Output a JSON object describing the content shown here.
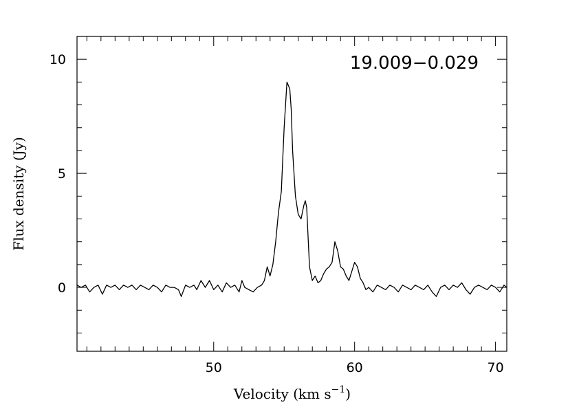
{
  "chart_data": {
    "type": "line",
    "title": "",
    "annotation": "19.009−0.029",
    "xlabel": "Velocity (km s",
    "xlabel_sup": "−1",
    "xlabel_close": ")",
    "ylabel": "Flux density (Jy)",
    "xlim": [
      40.3,
      70.8
    ],
    "ylim": [
      -2.8,
      11.0
    ],
    "x_major_ticks": [
      50,
      60,
      70
    ],
    "x_tick_labels": [
      "50",
      "60",
      "70"
    ],
    "x_minor_step": 1,
    "y_major_ticks": [
      0,
      5,
      10
    ],
    "y_tick_labels": [
      "0",
      "5",
      "10"
    ],
    "y_minor_step": 1,
    "grid": false,
    "series": [
      {
        "x": [
          40.3,
          40.6,
          40.9,
          41.2,
          41.5,
          41.8,
          42.1,
          42.4,
          42.7,
          43.0,
          43.3,
          43.6,
          43.9,
          44.2,
          44.5,
          44.8,
          45.1,
          45.4,
          45.7,
          46.0,
          46.3,
          46.6,
          46.9,
          47.2,
          47.5,
          47.7,
          48.0,
          48.3,
          48.6,
          48.8,
          49.1,
          49.4,
          49.7,
          50.0,
          50.3,
          50.6,
          50.9,
          51.2,
          51.5,
          51.8,
          52.0,
          52.2,
          52.5,
          52.8,
          53.1,
          53.4,
          53.6,
          53.8,
          54.0,
          54.2,
          54.4,
          54.6,
          54.8,
          55.0,
          55.2,
          55.4,
          55.5,
          55.6,
          55.8,
          56.0,
          56.2,
          56.4,
          56.5,
          56.6,
          56.8,
          57.0,
          57.2,
          57.4,
          57.6,
          57.8,
          58.0,
          58.2,
          58.4,
          58.6,
          58.8,
          59.0,
          59.2,
          59.4,
          59.6,
          59.8,
          60.0,
          60.2,
          60.4,
          60.6,
          60.8,
          61.0,
          61.3,
          61.6,
          61.9,
          62.2,
          62.5,
          62.8,
          63.1,
          63.4,
          63.7,
          64.0,
          64.3,
          64.6,
          64.9,
          65.2,
          65.5,
          65.8,
          66.1,
          66.4,
          66.7,
          67.0,
          67.3,
          67.6,
          67.9,
          68.2,
          68.5,
          68.8,
          69.1,
          69.4,
          69.7,
          70.0,
          70.3,
          70.6,
          70.8
        ],
        "y": [
          0.1,
          0.0,
          0.1,
          -0.2,
          0.0,
          0.1,
          -0.3,
          0.1,
          0.0,
          0.1,
          -0.1,
          0.1,
          0.0,
          0.1,
          -0.1,
          0.1,
          0.0,
          -0.1,
          0.1,
          0.0,
          -0.2,
          0.1,
          0.0,
          0.0,
          -0.1,
          -0.4,
          0.1,
          0.0,
          0.1,
          -0.1,
          0.3,
          0.0,
          0.3,
          -0.1,
          0.1,
          -0.2,
          0.2,
          0.0,
          0.1,
          -0.2,
          0.3,
          0.0,
          -0.1,
          -0.2,
          0.0,
          0.1,
          0.3,
          0.9,
          0.5,
          1.0,
          2.0,
          3.3,
          4.2,
          7.0,
          9.0,
          8.7,
          7.8,
          6.0,
          4.0,
          3.2,
          3.0,
          3.6,
          3.8,
          3.5,
          0.9,
          0.3,
          0.5,
          0.2,
          0.3,
          0.6,
          0.8,
          0.9,
          1.1,
          2.0,
          1.6,
          0.9,
          0.8,
          0.5,
          0.3,
          0.7,
          1.1,
          0.9,
          0.4,
          0.2,
          -0.1,
          0.0,
          -0.2,
          0.1,
          0.0,
          -0.1,
          0.1,
          0.0,
          -0.2,
          0.1,
          0.0,
          -0.1,
          0.1,
          0.0,
          -0.1,
          0.1,
          -0.2,
          -0.4,
          0.0,
          0.1,
          -0.1,
          0.1,
          0.0,
          0.2,
          -0.1,
          -0.3,
          0.0,
          0.1,
          0.0,
          -0.1,
          0.1,
          0.0,
          -0.2,
          0.1,
          0.0
        ]
      }
    ]
  }
}
